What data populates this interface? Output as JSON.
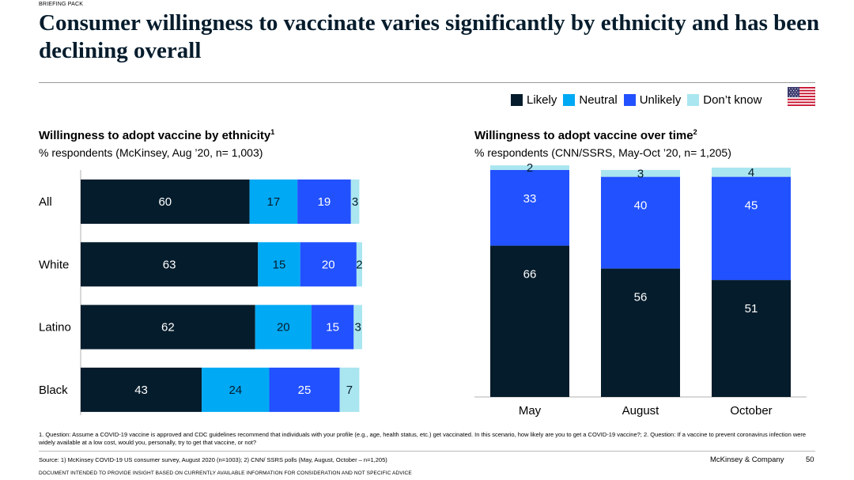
{
  "header": {
    "tag": "BRIEFING PACK",
    "title": "Consumer willingness to vaccinate varies significantly by ethnicity and has been declining overall"
  },
  "legend": {
    "items": [
      {
        "label": "Likely",
        "color": "#051c2c"
      },
      {
        "label": "Neutral",
        "color": "#00a9f4"
      },
      {
        "label": "Unlikely",
        "color": "#2251ff"
      },
      {
        "label": "Don’t know",
        "color": "#aae6f0"
      }
    ],
    "flag_icon": "us-flag-icon"
  },
  "left": {
    "title": "Willingness to adopt vaccine by ethnicity",
    "sup": "1",
    "subtitle": "% respondents (McKinsey, Aug ’20, n= 1,003)"
  },
  "right": {
    "title": "Willingness to adopt vaccine over time",
    "sup": "2",
    "subtitle": "% respondents (CNN/SSRS, May-Oct ’20, n= 1,205)"
  },
  "chart_data": [
    {
      "type": "bar",
      "orientation": "horizontal",
      "stacked": true,
      "title": "Willingness to adopt vaccine by ethnicity",
      "categories": [
        "All",
        "White",
        "Latino",
        "Black"
      ],
      "series": [
        {
          "name": "Likely",
          "values": [
            60,
            63,
            62,
            43
          ]
        },
        {
          "name": "Neutral",
          "values": [
            17,
            15,
            20,
            24
          ]
        },
        {
          "name": "Unlikely",
          "values": [
            19,
            20,
            15,
            25
          ]
        },
        {
          "name": "Don’t know",
          "values": [
            3,
            2,
            3,
            7
          ]
        }
      ]
    },
    {
      "type": "bar",
      "orientation": "vertical",
      "stacked": true,
      "title": "Willingness to adopt vaccine over time",
      "categories": [
        "May",
        "August",
        "October"
      ],
      "series": [
        {
          "name": "Likely",
          "values": [
            66,
            56,
            51
          ]
        },
        {
          "name": "Unlikely",
          "values": [
            33,
            40,
            45
          ]
        },
        {
          "name": "Don’t know",
          "values": [
            2,
            3,
            4
          ]
        }
      ]
    }
  ],
  "footer": {
    "footnote": "1. Question: Assume a COVID-19 vaccine is approved and CDC guidelines recommend that individuals with your profile (e.g., age, health status, etc.) get vaccinated. In this scenario, how likely are you to get a COVID-19 vaccine?; 2. Question: If a vaccine to prevent coronavirus infection were widely available at a low cost, would you, personally, try to get that vaccine, or not?",
    "source": "Source: 1) McKinsey COVID-19 US consumer survey, August 2020 (n=1003); 2) CNN/ SSRS polls (May, August, October – n=1,205)",
    "company": "McKinsey & Company",
    "page": "50",
    "disclaimer": "DOCUMENT INTENDED TO PROVIDE INSIGHT BASED ON CURRENTLY AVAILABLE INFORMATION FOR CONSIDERATION AND NOT SPECIFIC ADVICE"
  }
}
